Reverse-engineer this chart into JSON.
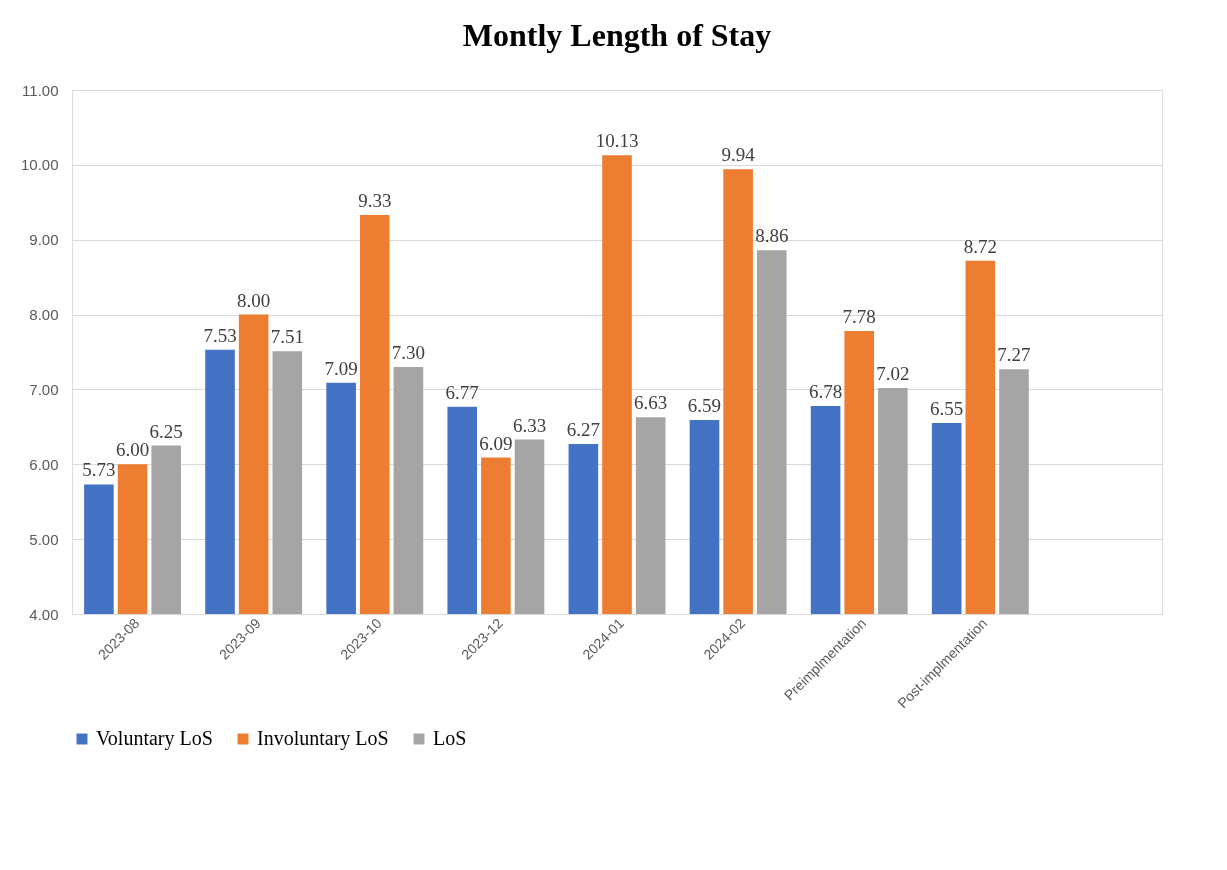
{
  "chart_data": {
    "type": "bar",
    "title": "Montly Length of Stay",
    "categories": [
      "2023-08",
      "2023-09",
      "2023-10",
      "2023-12",
      "2024-01",
      "2024-02",
      "Preimplmentation",
      "Post-implmentation",
      null
    ],
    "series": [
      {
        "name": "Voluntary LoS",
        "color": "#4472c4",
        "values": [
          5.73,
          7.53,
          7.09,
          6.77,
          6.27,
          6.59,
          6.78,
          6.55,
          null
        ],
        "value_labels": [
          "5.73",
          "7.53",
          "7.09",
          "6.77",
          "6.27",
          "6.59",
          "6.78",
          "6.55",
          null
        ]
      },
      {
        "name": "Involuntary LoS",
        "color": "#ed7d31",
        "values": [
          6.0,
          8.0,
          9.33,
          6.09,
          10.13,
          9.94,
          7.78,
          8.72,
          null
        ],
        "value_labels": [
          "6.00",
          "8.00",
          "9.33",
          "6.09",
          "10.13",
          "9.94",
          "7.78",
          "8.72",
          null
        ]
      },
      {
        "name": "LoS",
        "color": "#a5a5a5",
        "values": [
          6.25,
          7.51,
          7.3,
          6.33,
          6.63,
          8.86,
          7.02,
          7.27,
          null
        ],
        "value_labels": [
          "6.25",
          "7.51",
          "7.30",
          "6.33",
          "6.63",
          "8.86",
          "7.02",
          "7.27",
          null
        ]
      }
    ],
    "ylim": [
      4,
      11
    ],
    "yticks": [
      {
        "value": 4,
        "label": "4.00"
      },
      {
        "value": 5,
        "label": "5.00"
      },
      {
        "value": 6,
        "label": "6.00"
      },
      {
        "value": 7,
        "label": "7.00"
      },
      {
        "value": 8,
        "label": "8.00"
      },
      {
        "value": 9,
        "label": "9.00"
      },
      {
        "value": 10,
        "label": "10.00"
      },
      {
        "value": 11,
        "label": "11.00"
      }
    ],
    "grid": "y",
    "legend": "bottom"
  }
}
